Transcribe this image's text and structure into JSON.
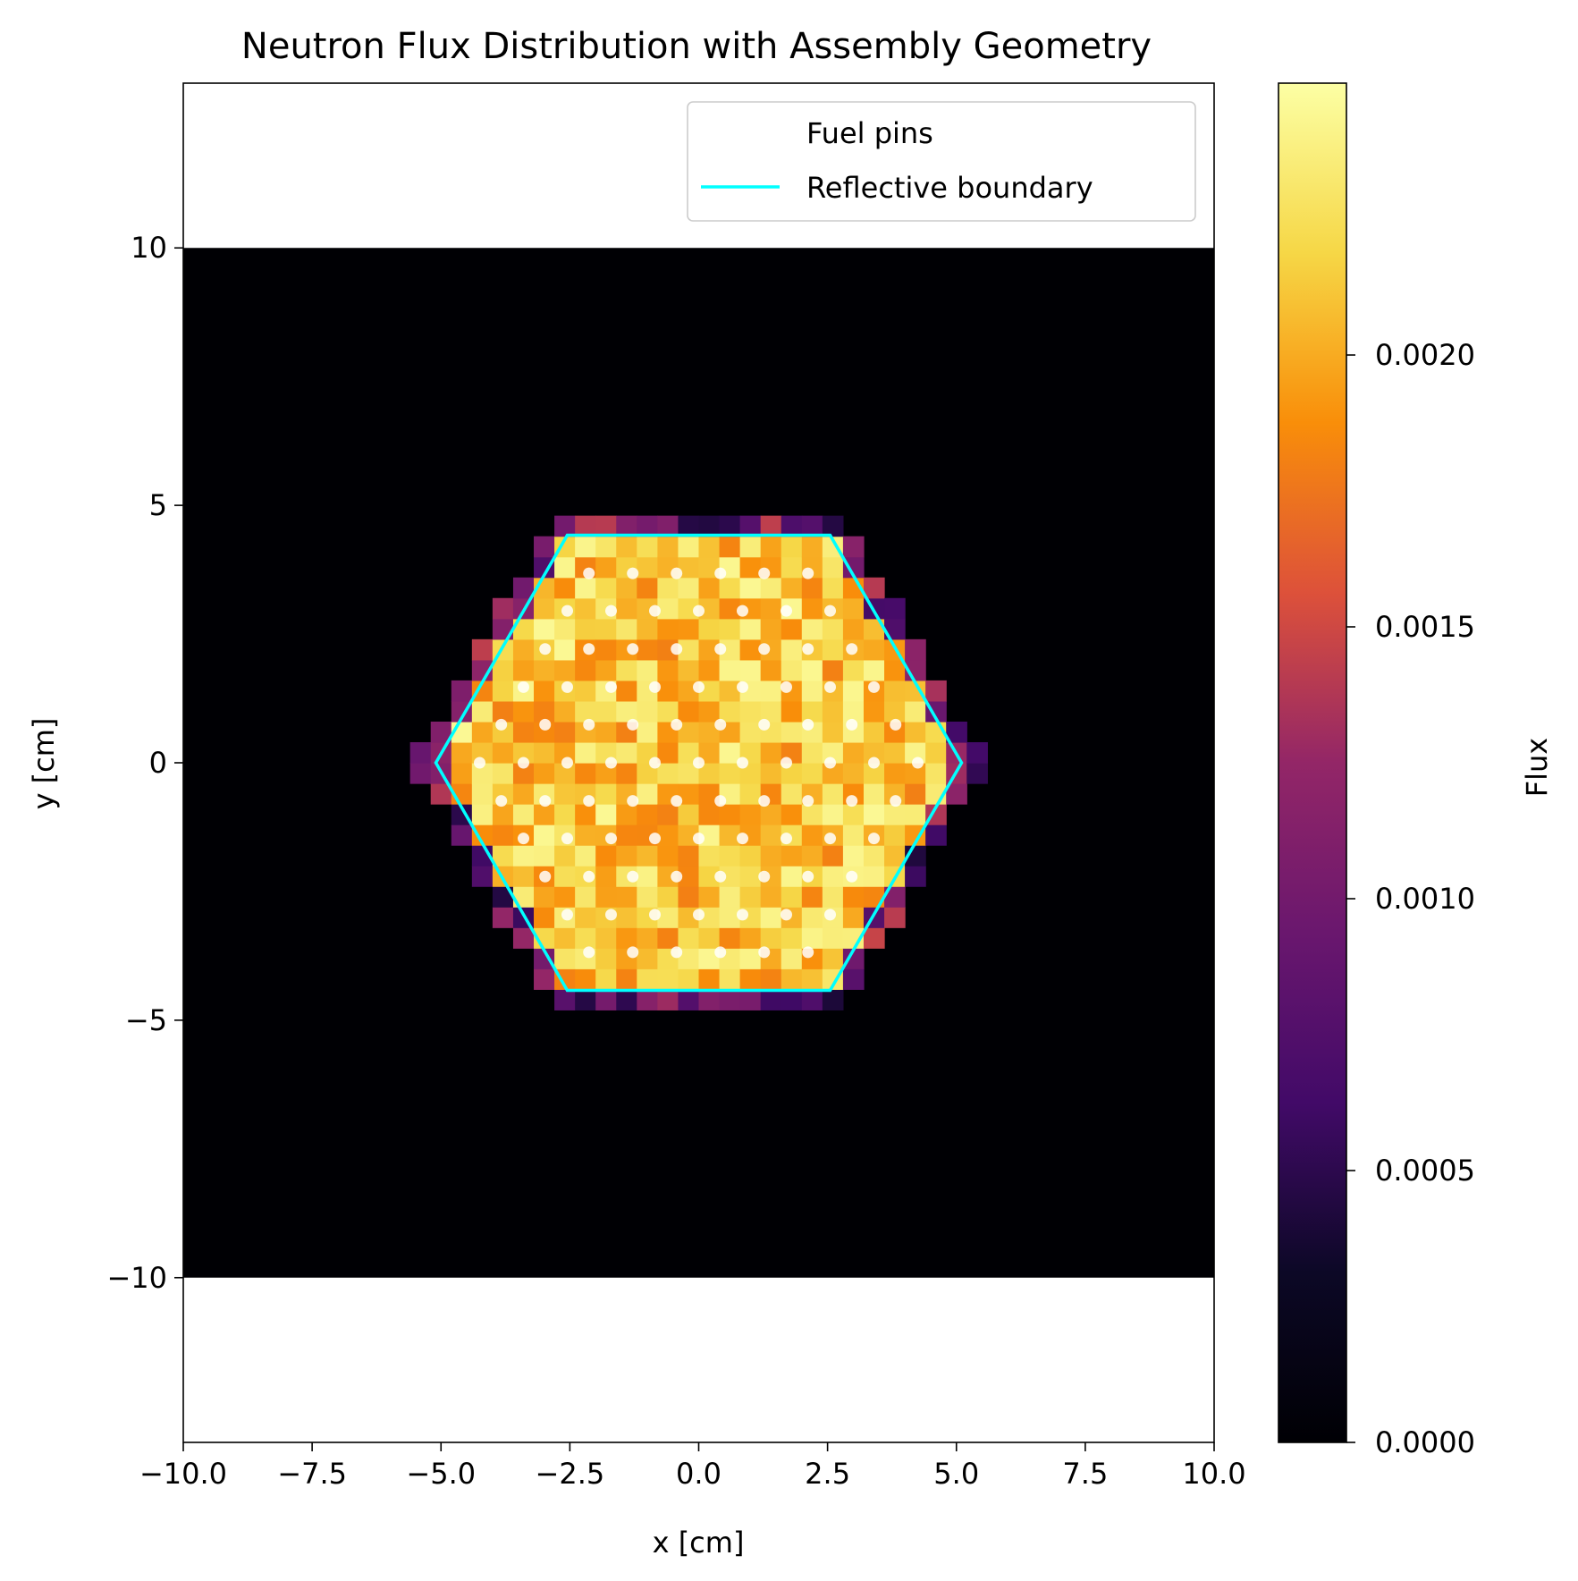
{
  "chart_data": {
    "type": "heatmap",
    "title": "Neutron Flux Distribution with Assembly Geometry",
    "xlabel": "x [cm]",
    "ylabel": "y [cm]",
    "xlim": [
      -10,
      10
    ],
    "ylim": [
      -13.2,
      13.2
    ],
    "image_extent": {
      "x": [
        -10,
        10
      ],
      "y": [
        -10,
        10
      ]
    },
    "x_ticks": [
      {
        "value": -10,
        "label": "−10.0"
      },
      {
        "value": -7.5,
        "label": "−7.5"
      },
      {
        "value": -5,
        "label": "−5.0"
      },
      {
        "value": -2.5,
        "label": "−2.5"
      },
      {
        "value": 0,
        "label": "0.0"
      },
      {
        "value": 2.5,
        "label": "2.5"
      },
      {
        "value": 5,
        "label": "5.0"
      },
      {
        "value": 7.5,
        "label": "7.5"
      },
      {
        "value": 10,
        "label": "10.0"
      }
    ],
    "y_ticks": [
      {
        "value": 10,
        "label": "10"
      },
      {
        "value": 5,
        "label": "5"
      },
      {
        "value": 0,
        "label": "0"
      },
      {
        "value": -5,
        "label": "−5"
      },
      {
        "value": -10,
        "label": "−10"
      }
    ],
    "grid": false,
    "legend": {
      "placement": "top-right",
      "entries": [
        {
          "label": "Fuel pins",
          "marker": "none"
        },
        {
          "label": "Reflective boundary",
          "color": "#00ffff"
        }
      ]
    },
    "colorbar": {
      "label": "Flux",
      "colormap": "inferno",
      "range": [
        0,
        0.0025
      ],
      "ticks": [
        {
          "value": 0,
          "label": "0.0000"
        },
        {
          "value": 0.0005,
          "label": "0.0005"
        },
        {
          "value": 0.001,
          "label": "0.0010"
        },
        {
          "value": 0.0015,
          "label": "0.0015"
        },
        {
          "value": 0.002,
          "label": "0.0020"
        }
      ]
    },
    "grid_cells": {
      "nx": 50,
      "ny": 50,
      "cell_size_cm": 0.4
    },
    "flux_inside_assembly": {
      "typical": 0.0021,
      "min": 0.0018,
      "max": 0.00245
    },
    "hexagon": {
      "color": "#00ffff",
      "vertices": [
        [
          -2.55,
          4.42
        ],
        [
          2.55,
          4.42
        ],
        [
          5.1,
          0
        ],
        [
          2.55,
          -4.42
        ],
        [
          -2.55,
          -4.42
        ],
        [
          -5.1,
          0
        ]
      ]
    },
    "fuel_pins": {
      "color": "#ffffff",
      "pitch_cm": 0.85,
      "rows": [
        {
          "y": 3.68,
          "x_start": -2.13,
          "count": 6
        },
        {
          "y": 2.95,
          "x_start": -2.55,
          "count": 7
        },
        {
          "y": 2.21,
          "x_start": -2.98,
          "count": 8
        },
        {
          "y": 1.47,
          "x_start": -3.4,
          "count": 9
        },
        {
          "y": 0.74,
          "x_start": -3.83,
          "count": 10
        },
        {
          "y": 0.0,
          "x_start": -4.25,
          "count": 11
        },
        {
          "y": -0.74,
          "x_start": -3.83,
          "count": 10
        },
        {
          "y": -1.47,
          "x_start": -3.4,
          "count": 9
        },
        {
          "y": -2.21,
          "x_start": -2.98,
          "count": 8
        },
        {
          "y": -2.95,
          "x_start": -2.55,
          "count": 7
        },
        {
          "y": -3.68,
          "x_start": -2.13,
          "count": 6
        }
      ]
    }
  }
}
